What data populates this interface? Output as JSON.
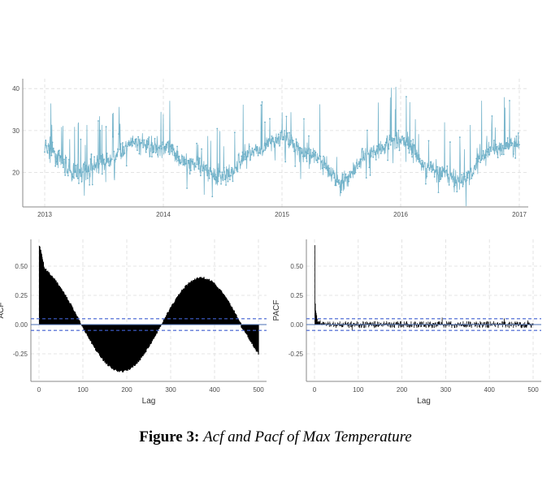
{
  "chart_data": [
    {
      "type": "line",
      "title": "",
      "xlabel": "",
      "ylabel": "",
      "color": "#6aaec7",
      "xlim": [
        2013.0,
        2017.0
      ],
      "ylim": [
        12,
        41
      ],
      "x_ticks": [
        "2013",
        "2014",
        "2015",
        "2016",
        "2017"
      ],
      "y_ticks": [
        "20",
        "30",
        "40"
      ],
      "y_tick_values": [
        20,
        30,
        40
      ],
      "grid": true,
      "series": [
        {
          "x_start": "2013-01-01",
          "x_end": "2017-01-01",
          "seasonal_means": [
            {
              "date": "2013-01",
              "y": 26
            },
            {
              "date": "2013-04",
              "y": 20
            },
            {
              "date": "2013-07",
              "y": 22
            },
            {
              "date": "2013-10",
              "y": 27
            },
            {
              "date": "2014-01",
              "y": 26
            },
            {
              "date": "2014-04",
              "y": 22
            },
            {
              "date": "2014-07",
              "y": 19
            },
            {
              "date": "2014-10",
              "y": 25
            },
            {
              "date": "2015-01",
              "y": 28
            },
            {
              "date": "2015-04",
              "y": 24
            },
            {
              "date": "2015-07",
              "y": 18
            },
            {
              "date": "2015-10",
              "y": 25
            },
            {
              "date": "2016-01",
              "y": 28
            },
            {
              "date": "2016-04",
              "y": 21
            },
            {
              "date": "2016-07",
              "y": 18
            },
            {
              "date": "2016-10",
              "y": 25
            },
            {
              "date": "2017-01",
              "y": 27
            }
          ],
          "min": 12,
          "max": 41
        }
      ]
    },
    {
      "type": "bar",
      "ylabel": "ACF",
      "xlabel": "Lag",
      "xlim": [
        -10,
        510
      ],
      "ylim": [
        -0.42,
        0.72
      ],
      "x_ticks": [
        "0",
        "100",
        "200",
        "300",
        "400",
        "500"
      ],
      "x_tick_values": [
        0,
        100,
        200,
        300,
        400,
        500
      ],
      "y_ticks": [
        "-0.25",
        "0.00",
        "0.25",
        "0.50"
      ],
      "y_tick_values": [
        -0.25,
        0.0,
        0.25,
        0.5
      ],
      "confidence_bound": 0.05,
      "grid": true,
      "series": [
        {
          "lag_range": [
            1,
            500
          ],
          "key_values": [
            {
              "lag": 1,
              "acf": 0.68
            },
            {
              "lag": 10,
              "acf": 0.53
            },
            {
              "lag": 50,
              "acf": 0.33
            },
            {
              "lag": 90,
              "acf": 0.0
            },
            {
              "lag": 180,
              "acf": -0.41
            },
            {
              "lag": 275,
              "acf": 0.0
            },
            {
              "lag": 365,
              "acf": 0.39
            },
            {
              "lag": 455,
              "acf": 0.0
            },
            {
              "lag": 500,
              "acf": -0.19
            }
          ]
        }
      ]
    },
    {
      "type": "bar",
      "ylabel": "PACF",
      "xlabel": "Lag",
      "xlim": [
        -10,
        510
      ],
      "ylim": [
        -0.42,
        0.72
      ],
      "x_ticks": [
        "0",
        "100",
        "200",
        "300",
        "400",
        "500"
      ],
      "x_tick_values": [
        0,
        100,
        200,
        300,
        400,
        500
      ],
      "y_ticks": [
        "-0.25",
        "0.00",
        "0.25",
        "0.50"
      ],
      "y_tick_values": [
        -0.25,
        0.0,
        0.25,
        0.5
      ],
      "confidence_bound": 0.05,
      "grid": true,
      "series": [
        {
          "lag_range": [
            1,
            500
          ],
          "key_values": [
            {
              "lag": 1,
              "pacf": 0.68
            },
            {
              "lag": 2,
              "pacf": 0.18
            },
            {
              "lag": 3,
              "pacf": 0.12
            },
            {
              "lag": 5,
              "pacf": 0.08
            },
            {
              "lag": 10,
              "pacf": 0.04
            },
            {
              "lag": 30,
              "pacf": 0.02
            }
          ]
        }
      ]
    }
  ],
  "caption": {
    "label": "Figure 3:",
    "text": "Acf and Pacf of Max Temperature"
  }
}
